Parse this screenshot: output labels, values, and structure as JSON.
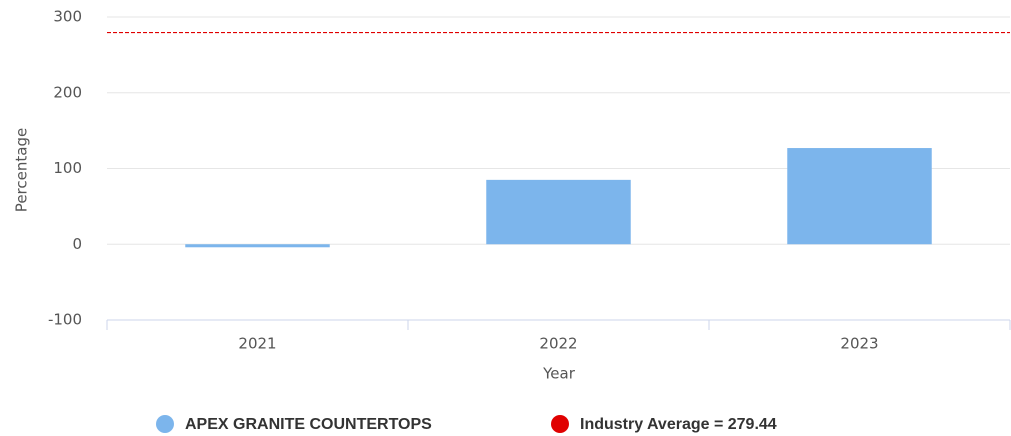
{
  "chart_data": {
    "type": "bar",
    "categories": [
      "2021",
      "2022",
      "2023"
    ],
    "series": [
      {
        "name": "APEX GRANITE COUNTERTOPS",
        "color": "#7cb5ec",
        "values": [
          -4,
          85,
          127
        ]
      }
    ],
    "reference_line": {
      "name": "Industry Average",
      "value": 279.44,
      "label": "Industry Average = 279.44",
      "color": "#e00000"
    },
    "ylim": [
      -100,
      300
    ],
    "yticks": [
      -100,
      0,
      100,
      200,
      300
    ],
    "grid": true,
    "x_label": "Year",
    "y_label": "Percentage"
  }
}
